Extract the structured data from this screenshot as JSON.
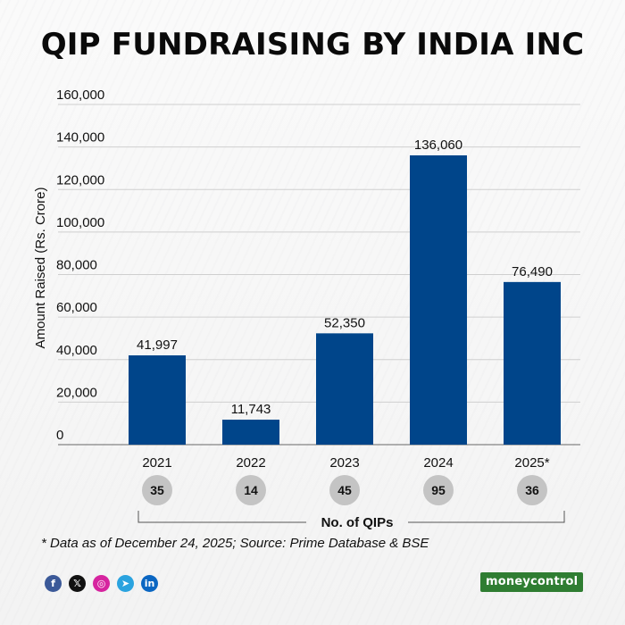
{
  "header": {
    "title": "QIP FUNDRAISING BY INDIA INC"
  },
  "chart_data": {
    "type": "bar",
    "title": "QIP FUNDRAISING BY INDIA INC",
    "xlabel": "",
    "ylabel": "Amount Raised (Rs. Crore)",
    "ylim": [
      0,
      160000
    ],
    "yticks": [
      0,
      20000,
      40000,
      60000,
      80000,
      100000,
      120000,
      140000,
      160000
    ],
    "ytick_labels": [
      "0",
      "20,000",
      "40,000",
      "60,000",
      "80,000",
      "100,000",
      "120,000",
      "140,000",
      "160,000"
    ],
    "categories": [
      "2021",
      "2022",
      "2023",
      "2024",
      "2025*"
    ],
    "values": [
      41997,
      11743,
      52350,
      136060,
      76490
    ],
    "value_labels": [
      "41,997",
      "11,743",
      "52,350",
      "136,060",
      "76,490"
    ],
    "bar_color": "#00458a",
    "grid": true,
    "qip_counts": [
      "35",
      "14",
      "45",
      "95",
      "36"
    ],
    "qip_counts_label": "No. of QIPs"
  },
  "footer": {
    "note": "* Data as of December 24, 2025; Source: Prime Database & BSE",
    "brand": "moneycontrol",
    "brand_color": "#2f7d32",
    "social_icons": [
      {
        "name": "facebook-icon",
        "glyph": "f",
        "color": "#3b5998"
      },
      {
        "name": "x-icon",
        "glyph": "𝕏",
        "color": "#111111"
      },
      {
        "name": "instagram-icon",
        "glyph": "◎",
        "color": "#d6249f"
      },
      {
        "name": "telegram-icon",
        "glyph": "➤",
        "color": "#2aa3df"
      },
      {
        "name": "linkedin-icon",
        "glyph": "in",
        "color": "#0a66c2"
      }
    ]
  }
}
